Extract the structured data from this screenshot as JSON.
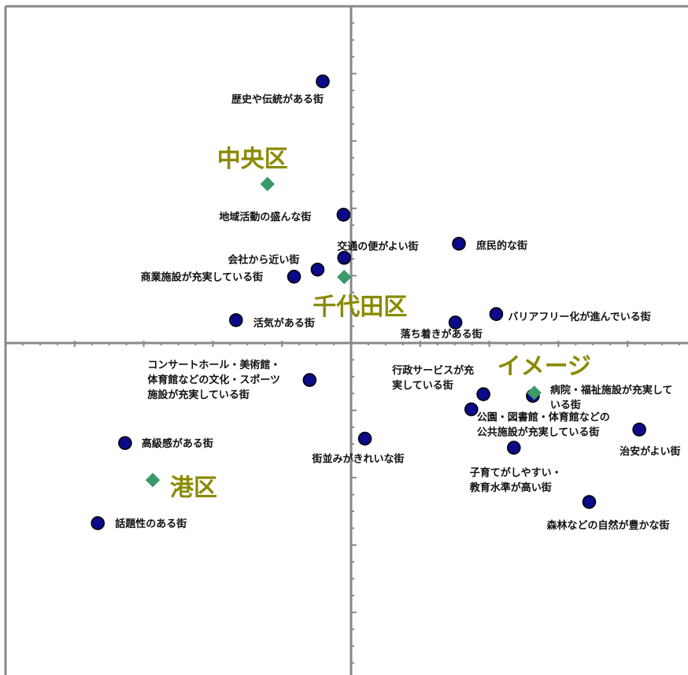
{
  "chart_data": {
    "type": "scatter",
    "xlim": [
      -1.0,
      1.0
    ],
    "ylim": [
      -1.0,
      1.0
    ],
    "grid": false,
    "colors": {
      "attribute_point": "#0a0a8a",
      "group_point": "#3a9a6a",
      "group_label": "#8a8a00",
      "axis": "#888888"
    },
    "attributes": [
      {
        "label": "歴史や伝統がある街",
        "x": -0.082,
        "y": 0.777
      },
      {
        "label": "地域活動の盛んな街",
        "x": -0.022,
        "y": 0.381
      },
      {
        "label": "交通の便がよい街",
        "x": -0.02,
        "y": 0.253
      },
      {
        "label": "庶民的な街",
        "x": 0.312,
        "y": 0.295
      },
      {
        "label": "会社から近い街",
        "x": -0.097,
        "y": 0.218
      },
      {
        "label": "商業施設が充実している街",
        "x": -0.165,
        "y": 0.197
      },
      {
        "label": "活気がある街",
        "x": -0.333,
        "y": 0.068
      },
      {
        "label": "バリアフリー化が進んでいる街",
        "x": 0.42,
        "y": 0.086
      },
      {
        "label": "落ち着きがある街",
        "x": 0.302,
        "y": 0.061
      },
      {
        "label": "コンサートホール・美術館・体育館などの文化・スポーツ施設が充実している街",
        "lines": [
          "コンサートホール・美術館・",
          "体育館などの文化・スポーツ",
          "施設が充実している街"
        ],
        "x": -0.12,
        "y": -0.11
      },
      {
        "label": "行政サービスが充実している街",
        "lines": [
          "行政サービスが充",
          "実している街"
        ],
        "x": 0.383,
        "y": -0.152
      },
      {
        "label": "病院・福祉施設が充実している街",
        "lines": [
          "病院・福祉施設が充実して",
          "いる街"
        ],
        "x": 0.526,
        "y": -0.157
      },
      {
        "label": "公園・図書館・体育館などの公共施設が充実している街",
        "lines": [
          "公園・図書館・体育館などの",
          "公共施設が充実している街"
        ],
        "x": 0.348,
        "y": -0.197
      },
      {
        "label": "治安がよい街",
        "x": 0.834,
        "y": -0.257
      },
      {
        "label": "高級感がある街",
        "x": -0.654,
        "y": -0.297
      },
      {
        "label": "街並みがきれいな街",
        "x": 0.04,
        "y": -0.284
      },
      {
        "label": "子育てがしやすい・教育水準が高い街",
        "lines": [
          "子育てがしやすい・",
          "教育水準が高い街"
        ],
        "x": 0.471,
        "y": -0.311
      },
      {
        "label": "森林などの自然が豊かな街",
        "x": 0.689,
        "y": -0.472
      },
      {
        "label": "話題性のある街",
        "x": -0.733,
        "y": -0.535
      }
    ],
    "groups": [
      {
        "label": "中央区",
        "x": -0.242,
        "y": 0.472
      },
      {
        "label": "千代田区",
        "x": -0.02,
        "y": 0.196
      },
      {
        "label": "イメージ",
        "x": 0.53,
        "y": -0.148
      },
      {
        "label": "港区",
        "x": -0.574,
        "y": -0.407
      }
    ]
  }
}
